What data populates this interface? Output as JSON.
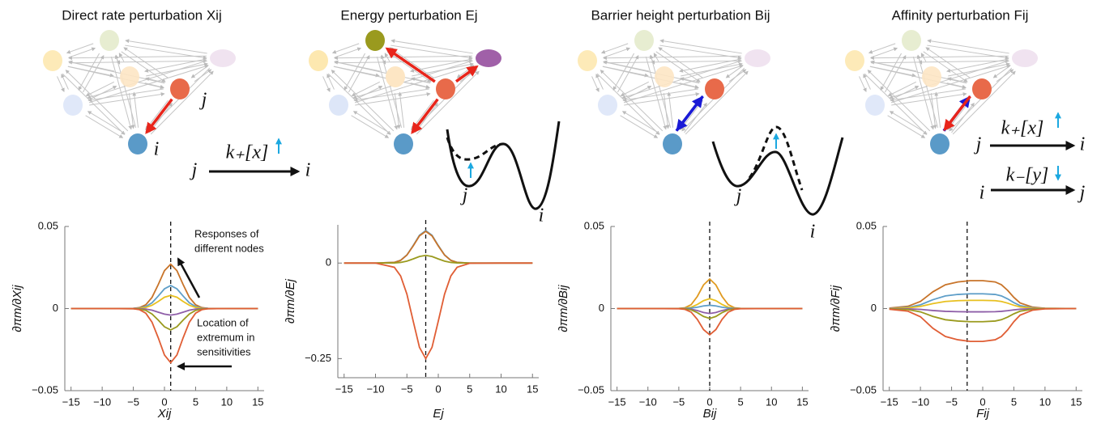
{
  "chart_data": [
    {
      "type": "line",
      "title": "Direct rate perturbation Xij",
      "xlabel": "Xij",
      "ylabel": "∂πm/∂Xij",
      "xlim": [
        -16,
        16
      ],
      "xticks": [
        {
          "value": -15,
          "label": "−15"
        },
        {
          "value": -10,
          "label": "−10"
        },
        {
          "value": -5,
          "label": "−5"
        },
        0,
        5,
        10,
        15
      ],
      "ylim": [
        -0.05,
        0.05
      ],
      "yticks": [
        {
          "value": -0.05,
          "label": "−0.05"
        },
        0,
        0.05
      ],
      "vline": 1,
      "x": [
        -15,
        -10,
        -5,
        -4,
        -3,
        -2,
        -1,
        0,
        1,
        2,
        3,
        4,
        5,
        6,
        7,
        10,
        15
      ],
      "series": [
        {
          "color": "#c8742a",
          "values": [
            0,
            0,
            0.0001,
            0.0006,
            0.0023,
            0.0068,
            0.0146,
            0.0231,
            0.027,
            0.0231,
            0.0146,
            0.0068,
            0.0023,
            0.0006,
            0.0001,
            0,
            0
          ]
        },
        {
          "color": "#5e9ec8",
          "values": [
            0,
            0,
            0.0001,
            0.0003,
            0.0012,
            0.0035,
            0.0076,
            0.012,
            0.014,
            0.012,
            0.0076,
            0.0035,
            0.0012,
            0.0003,
            0.0001,
            0,
            0
          ]
        },
        {
          "color": "#e8c020",
          "values": [
            0,
            0,
            0,
            0.0002,
            0.0007,
            0.002,
            0.0043,
            0.0069,
            0.008,
            0.0069,
            0.0043,
            0.002,
            0.0007,
            0.0002,
            0,
            0,
            0
          ]
        },
        {
          "color": "#8e5ea8",
          "values": [
            0,
            0,
            0,
            -0.0001,
            -0.0003,
            -0.001,
            -0.0022,
            -0.0034,
            -0.004,
            -0.0034,
            -0.0022,
            -0.001,
            -0.0003,
            -0.0001,
            0,
            0,
            0
          ]
        },
        {
          "color": "#9a9a1e",
          "values": [
            0,
            0,
            -0.0001,
            -0.0003,
            -0.0011,
            -0.0033,
            -0.007,
            -0.0111,
            -0.013,
            -0.0111,
            -0.007,
            -0.0033,
            -0.0011,
            -0.0003,
            -0.0001,
            0,
            0
          ]
        },
        {
          "color": "#e05e35",
          "values": [
            0,
            0,
            -0.0001,
            -0.0007,
            -0.0028,
            -0.0083,
            -0.0178,
            -0.0283,
            -0.033,
            -0.0283,
            -0.0178,
            -0.0083,
            -0.0028,
            -0.0007,
            -0.0001,
            0,
            0
          ]
        }
      ],
      "annotations": [
        "Responses of",
        "different nodes",
        "Location of",
        "extremum in",
        "sensitivities"
      ]
    },
    {
      "type": "line",
      "title": "Energy perturbation Ej",
      "xlabel": "Ej",
      "ylabel": "∂πm/∂Ej",
      "xlim": [
        -16,
        16
      ],
      "xticks": [
        {
          "value": -15,
          "label": "−15"
        },
        {
          "value": -10,
          "label": "−10"
        },
        {
          "value": -5,
          "label": "−5"
        },
        0,
        5,
        10,
        15
      ],
      "ylim": [
        -0.3,
        0.1
      ],
      "yticks": [
        {
          "value": -0.25,
          "label": "−0.25"
        },
        0
      ],
      "vline": -2,
      "x": [
        -15,
        -10,
        -7,
        -6,
        -5,
        -4,
        -3,
        -2,
        -1,
        0,
        1,
        2,
        3,
        5,
        10,
        15
      ],
      "series": [
        {
          "color": "#5e9ec8",
          "values": [
            0,
            0,
            0.0018,
            0.0072,
            0.0213,
            0.0459,
            0.0728,
            0.085,
            0.0728,
            0.0459,
            0.0213,
            0.0072,
            0.0018,
            0,
            0,
            0
          ]
        },
        {
          "color": "#c8742a",
          "values": [
            0,
            0,
            0.0017,
            0.0071,
            0.0208,
            0.0448,
            0.0711,
            0.083,
            0.0711,
            0.0448,
            0.0208,
            0.0071,
            0.0017,
            0,
            0,
            0
          ]
        },
        {
          "color": "#9a9a1e",
          "values": [
            0,
            0,
            0.0004,
            0.0017,
            0.005,
            0.0108,
            0.0171,
            0.02,
            0.0171,
            0.0108,
            0.005,
            0.0017,
            0.0004,
            0,
            0,
            0
          ]
        },
        {
          "color": "#e05e35",
          "values": [
            0,
            0,
            -0.011,
            -0.0338,
            -0.0813,
            -0.1518,
            -0.2205,
            -0.25,
            -0.2205,
            -0.1518,
            -0.0813,
            -0.0338,
            -0.011,
            -0.0005,
            0,
            0
          ]
        }
      ]
    },
    {
      "type": "line",
      "title": "Barrier height perturbation Bij",
      "xlabel": "Bij",
      "ylabel": "∂πm/∂Bij",
      "xlim": [
        -16,
        16
      ],
      "xticks": [
        {
          "value": -15,
          "label": "−15"
        },
        {
          "value": -10,
          "label": "−10"
        },
        {
          "value": -5,
          "label": "−5"
        },
        0,
        5,
        10,
        15
      ],
      "ylim": [
        -0.05,
        0.05
      ],
      "yticks": [
        {
          "value": -0.05,
          "label": "−0.05"
        },
        0,
        0.05
      ],
      "vline": 0,
      "x": [
        -15,
        -10,
        -5,
        -4,
        -3,
        -2,
        -1,
        0,
        1,
        2,
        3,
        4,
        5,
        10,
        15
      ],
      "series": [
        {
          "color": "#e09a20",
          "values": [
            0,
            0,
            0.0001,
            0.0005,
            0.0024,
            0.0074,
            0.0144,
            0.018,
            0.0144,
            0.0074,
            0.0024,
            0.0005,
            0.0001,
            0,
            0
          ]
        },
        {
          "color": "#e8c020",
          "values": [
            0,
            0,
            0,
            0.0002,
            0.0008,
            0.0025,
            0.0048,
            0.006,
            0.0048,
            0.0025,
            0.0008,
            0.0002,
            0,
            0,
            0
          ]
        },
        {
          "color": "#5e9ec8",
          "values": [
            0,
            0,
            0,
            0.0001,
            0.0003,
            0.0008,
            0.0016,
            0.002,
            0.0016,
            0.0008,
            0.0003,
            0.0001,
            0,
            0,
            0
          ]
        },
        {
          "color": "#8e5ea8",
          "values": [
            0,
            0,
            0,
            -0.0001,
            -0.0004,
            -0.0012,
            -0.0024,
            -0.003,
            -0.0024,
            -0.0012,
            -0.0004,
            -0.0001,
            0,
            0,
            0
          ]
        },
        {
          "color": "#9a9a1e",
          "values": [
            0,
            0,
            0,
            -0.0002,
            -0.0008,
            -0.0025,
            -0.0048,
            -0.006,
            -0.0048,
            -0.0025,
            -0.0008,
            -0.0002,
            0,
            0,
            0
          ]
        },
        {
          "color": "#e05e35",
          "values": [
            0,
            0,
            -0.0001,
            -0.0005,
            -0.0022,
            -0.0066,
            -0.0128,
            -0.016,
            -0.0128,
            -0.0066,
            -0.0022,
            -0.0005,
            -0.0001,
            0,
            0
          ]
        }
      ]
    },
    {
      "type": "line",
      "title": "Affinity perturbation Fij",
      "xlabel": "Fij",
      "ylabel": "∂πm/∂Fij",
      "xlim": [
        -16,
        16
      ],
      "xticks": [
        {
          "value": -15,
          "label": "−15"
        },
        {
          "value": -10,
          "label": "−10"
        },
        {
          "value": -5,
          "label": "−5"
        },
        0,
        5,
        10,
        15
      ],
      "ylim": [
        -0.05,
        0.05
      ],
      "yticks": [
        {
          "value": -0.05,
          "label": "−0.05"
        },
        0,
        0.05
      ],
      "vline": -2.5,
      "x": [
        -15,
        -12,
        -10,
        -8,
        -6,
        -4,
        -2,
        0,
        2,
        3,
        4,
        5,
        6,
        8,
        10,
        15
      ],
      "series": [
        {
          "color": "#c8742a",
          "values": [
            0.0003,
            0.0014,
            0.0043,
            0.0102,
            0.0145,
            0.0162,
            0.017,
            0.017,
            0.0162,
            0.0145,
            0.0111,
            0.0068,
            0.0034,
            0.0009,
            0.0002,
            0
          ]
        },
        {
          "color": "#5e9ec8",
          "values": [
            0.0002,
            0.0007,
            0.0023,
            0.0054,
            0.0077,
            0.0086,
            0.009,
            0.009,
            0.0086,
            0.0077,
            0.0059,
            0.0036,
            0.0018,
            0.0005,
            0.0001,
            0
          ]
        },
        {
          "color": "#e8c020",
          "values": [
            0.0001,
            0.0004,
            0.0013,
            0.003,
            0.0043,
            0.0048,
            0.005,
            0.005,
            0.0048,
            0.0043,
            0.0033,
            0.002,
            0.001,
            0.0003,
            0.0001,
            0
          ]
        },
        {
          "color": "#8e5ea8",
          "values": [
            0,
            -0.0002,
            -0.0005,
            -0.0012,
            -0.0017,
            -0.0019,
            -0.002,
            -0.002,
            -0.0019,
            -0.0017,
            -0.0013,
            -0.0008,
            -0.0004,
            -0.0001,
            0,
            0
          ]
        },
        {
          "color": "#9a9a1e",
          "values": [
            -0.0002,
            -0.0006,
            -0.002,
            -0.0048,
            -0.0068,
            -0.0076,
            -0.008,
            -0.008,
            -0.0076,
            -0.0068,
            -0.0052,
            -0.0032,
            -0.0016,
            -0.0004,
            -0.0001,
            0
          ]
        },
        {
          "color": "#e05e35",
          "values": [
            -0.0004,
            -0.0016,
            -0.005,
            -0.012,
            -0.017,
            -0.019,
            -0.02,
            -0.02,
            -0.019,
            -0.017,
            -0.013,
            -0.008,
            -0.004,
            -0.001,
            -0.0002,
            0
          ]
        }
      ]
    }
  ],
  "diagrams": [
    {
      "labels": [
        "j",
        "i",
        "j",
        "k₊[x]",
        "i"
      ]
    },
    {
      "labels": [
        "j",
        "i"
      ]
    },
    {
      "labels": [
        "j",
        "i"
      ]
    },
    {
      "labels": [
        "j",
        "k₊[x]",
        "i",
        "i",
        "k₋[y]",
        "j"
      ]
    }
  ]
}
